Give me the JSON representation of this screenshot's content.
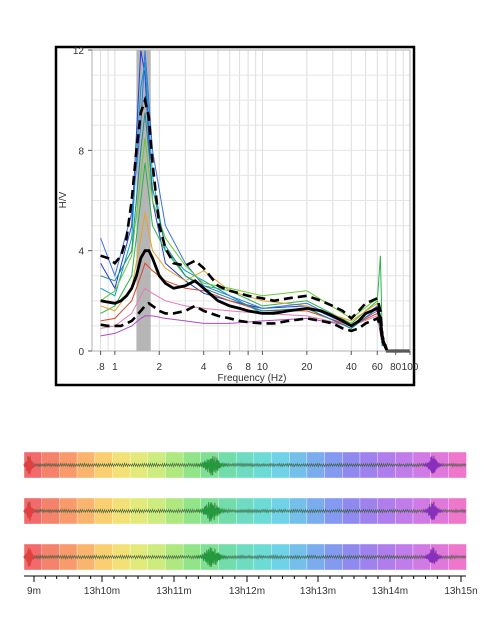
{
  "chart_data": [
    {
      "type": "line",
      "xlabel": "Frequency (Hz)",
      "ylabel": "H/V",
      "x_scale": "log",
      "xlim": [
        0.7,
        100
      ],
      "ylim": [
        0,
        12
      ],
      "x_ticks": [
        0.8,
        1,
        2,
        4,
        6,
        8,
        10,
        20,
        40,
        60,
        80,
        100
      ],
      "x_tick_labels": [
        ".8",
        "1",
        "2",
        "4",
        "6",
        "8",
        "10",
        "20",
        "40",
        "60",
        "80",
        "100"
      ],
      "y_ticks": [
        0,
        4,
        8,
        12
      ],
      "grid": true,
      "highlight_band": {
        "x": [
          1.4,
          1.75
        ],
        "color": "#a9a9a9"
      },
      "mean_curve": {
        "color": "#000000",
        "x": [
          0.8,
          0.9,
          1.0,
          1.1,
          1.2,
          1.3,
          1.4,
          1.5,
          1.6,
          1.7,
          1.8,
          2.0,
          2.2,
          2.5,
          3.0,
          3.5,
          4.0,
          5.0,
          6.0,
          7.0,
          8.0,
          10,
          12,
          15,
          20,
          25,
          30,
          35,
          40,
          45,
          50,
          55,
          60,
          63,
          65,
          70,
          80,
          100
        ],
        "y": [
          2.0,
          1.95,
          1.9,
          2.0,
          2.2,
          2.5,
          3.0,
          3.7,
          4.0,
          4.0,
          3.7,
          3.0,
          2.7,
          2.5,
          2.6,
          2.8,
          2.5,
          2.0,
          1.8,
          1.7,
          1.6,
          1.5,
          1.5,
          1.6,
          1.7,
          1.6,
          1.4,
          1.2,
          1.0,
          1.2,
          1.5,
          1.6,
          1.7,
          1.3,
          0.5,
          0,
          0,
          0
        ]
      },
      "std_upper": {
        "color": "#000000",
        "dashed": true,
        "x": [
          0.8,
          0.9,
          1.0,
          1.1,
          1.2,
          1.3,
          1.4,
          1.5,
          1.6,
          1.7,
          1.8,
          2.0,
          2.2,
          2.5,
          3.0,
          3.5,
          4.0,
          5.0,
          6.0,
          7.0,
          8.0,
          10,
          12,
          15,
          20,
          25,
          30,
          35,
          40,
          45,
          50,
          55,
          60,
          63,
          65,
          70,
          80,
          100
        ],
        "y": [
          3.8,
          3.7,
          3.5,
          3.8,
          4.5,
          6.0,
          8.0,
          9.5,
          10.0,
          9.3,
          7.5,
          5.0,
          4.1,
          3.5,
          3.4,
          3.6,
          3.3,
          2.6,
          2.4,
          2.3,
          2.2,
          2.1,
          2.0,
          2.1,
          2.2,
          2.0,
          1.8,
          1.6,
          1.3,
          1.6,
          1.9,
          2.0,
          2.1,
          1.6,
          0.6,
          0,
          0,
          0
        ]
      },
      "std_lower": {
        "color": "#000000",
        "dashed": true,
        "x": [
          0.8,
          0.9,
          1.0,
          1.1,
          1.2,
          1.3,
          1.4,
          1.5,
          1.6,
          1.7,
          1.8,
          2.0,
          2.2,
          2.5,
          3.0,
          3.5,
          4.0,
          5.0,
          6.0,
          7.0,
          8.0,
          10,
          12,
          15,
          20,
          25,
          30,
          35,
          40,
          45,
          50,
          55,
          60,
          63,
          65,
          70,
          80,
          100
        ],
        "y": [
          1.05,
          1.0,
          1.0,
          1.0,
          1.1,
          1.2,
          1.4,
          1.6,
          1.8,
          1.9,
          1.8,
          1.6,
          1.5,
          1.5,
          1.6,
          1.8,
          1.6,
          1.4,
          1.3,
          1.2,
          1.15,
          1.1,
          1.1,
          1.2,
          1.3,
          1.2,
          1.1,
          0.9,
          0.8,
          0.9,
          1.1,
          1.2,
          1.3,
          1.0,
          0.4,
          0,
          0,
          0
        ]
      },
      "window_curves": [
        {
          "color": "#1f3fd1",
          "x": [
            0.8,
            1.0,
            1.3,
            1.5,
            1.6,
            1.8,
            2.2,
            3,
            4,
            6,
            10,
            20,
            40,
            60,
            65
          ],
          "y": [
            3.5,
            2.5,
            5.0,
            12.0,
            11.0,
            6.0,
            3.5,
            2.8,
            2.3,
            2.0,
            1.7,
            1.8,
            1.0,
            1.8,
            0.2
          ]
        },
        {
          "color": "#00a0c8",
          "x": [
            0.8,
            1.0,
            1.3,
            1.5,
            1.6,
            1.8,
            2.2,
            3,
            4,
            6,
            10,
            20,
            40,
            60,
            65
          ],
          "y": [
            2.5,
            2.2,
            4.5,
            10.5,
            11.5,
            7.0,
            4.0,
            3.2,
            2.8,
            2.2,
            1.5,
            1.7,
            0.9,
            1.7,
            0.2
          ]
        },
        {
          "color": "#2bb34a",
          "x": [
            0.8,
            1.0,
            1.3,
            1.5,
            1.6,
            1.8,
            2.2,
            3,
            4,
            6,
            10,
            20,
            40,
            60,
            63,
            65
          ],
          "y": [
            1.5,
            1.8,
            3.0,
            6.0,
            7.5,
            5.0,
            4.0,
            3.0,
            2.6,
            2.4,
            1.8,
            2.0,
            1.1,
            2.0,
            3.8,
            0.2
          ]
        },
        {
          "color": "#e2a62a",
          "x": [
            0.8,
            1.0,
            1.3,
            1.5,
            1.6,
            1.8,
            2.2,
            3,
            4,
            6,
            10,
            20,
            40,
            60,
            65
          ],
          "y": [
            1.8,
            1.6,
            2.5,
            4.5,
            5.5,
            4.0,
            3.3,
            2.8,
            3.2,
            2.4,
            2.0,
            1.8,
            1.2,
            1.9,
            0.2
          ]
        },
        {
          "color": "#d8462a",
          "x": [
            0.8,
            1.0,
            1.3,
            1.5,
            1.6,
            1.8,
            2.2,
            3,
            4,
            6,
            10,
            20,
            40,
            60,
            65
          ],
          "y": [
            1.2,
            1.3,
            2.0,
            3.0,
            3.5,
            3.2,
            2.8,
            2.5,
            2.4,
            2.0,
            1.6,
            1.6,
            1.0,
            1.5,
            0.2
          ]
        },
        {
          "color": "#b04ac8",
          "x": [
            0.8,
            1.0,
            1.3,
            1.5,
            1.6,
            1.8,
            2.2,
            3,
            4,
            6,
            10,
            20,
            40,
            60,
            65
          ],
          "y": [
            0.6,
            0.7,
            1.0,
            1.3,
            1.4,
            1.4,
            1.3,
            1.2,
            1.1,
            1.1,
            1.2,
            1.3,
            1.0,
            1.6,
            0.2
          ]
        },
        {
          "color": "#3a72e0",
          "x": [
            0.8,
            1.0,
            1.3,
            1.5,
            1.6,
            1.8,
            2.2,
            3,
            4,
            6,
            10,
            20,
            40,
            60,
            65
          ],
          "y": [
            4.5,
            3.0,
            5.5,
            9.0,
            12.0,
            8.0,
            5.0,
            3.5,
            2.6,
            2.2,
            1.7,
            1.9,
            1.0,
            1.8,
            0.2
          ]
        },
        {
          "color": "#6ac830",
          "x": [
            0.8,
            1.0,
            1.3,
            1.5,
            1.6,
            1.8,
            2.2,
            3,
            4,
            6,
            10,
            20,
            40,
            60,
            65
          ],
          "y": [
            2.0,
            2.4,
            3.8,
            7.0,
            8.5,
            6.0,
            4.5,
            3.4,
            2.7,
            2.5,
            2.2,
            2.4,
            1.3,
            2.1,
            0.2
          ]
        },
        {
          "color": "#e87ab0",
          "x": [
            0.8,
            1.0,
            1.3,
            1.5,
            1.6,
            1.8,
            2.2,
            3,
            4,
            6,
            10,
            20,
            40,
            60,
            65
          ],
          "y": [
            0.9,
            1.0,
            1.5,
            2.2,
            2.5,
            2.3,
            2.0,
            1.8,
            1.7,
            1.6,
            1.5,
            1.4,
            1.0,
            1.4,
            0.2
          ]
        },
        {
          "color": "#1a8a8a",
          "x": [
            0.8,
            1.0,
            1.3,
            1.5,
            1.6,
            1.8,
            2.2,
            3,
            4,
            6,
            10,
            20,
            40,
            60,
            65
          ],
          "y": [
            3.0,
            2.8,
            4.0,
            8.0,
            9.5,
            6.5,
            4.2,
            3.0,
            2.5,
            2.1,
            1.6,
            1.7,
            0.9,
            1.7,
            0.2
          ]
        }
      ]
    },
    {
      "type": "line",
      "x_tick_labels": [
        "9m",
        "13h10m",
        "13h11m",
        "13h12m",
        "13h13m",
        "13h14m",
        "13h15n"
      ],
      "n_traces": 3,
      "n_windows": 25,
      "window_colors": [
        "#f26a6a",
        "#f5826a",
        "#f89a6c",
        "#f9b56e",
        "#f9cf72",
        "#f3e178",
        "#e2ea7c",
        "#cdeb7e",
        "#b0e880",
        "#92e488",
        "#7edf95",
        "#72dcaa",
        "#6edcc0",
        "#6cdbd6",
        "#70d2e6",
        "#74c0ea",
        "#7aacee",
        "#8499f0",
        "#908af0",
        "#9f82ee",
        "#b07eec",
        "#c07cea",
        "#d17ae6",
        "#e078dc",
        "#ee76cc"
      ],
      "bursts": [
        {
          "t": 0.012,
          "amp": 1.0,
          "width": 0.006,
          "color": "#e04040"
        },
        {
          "t": 0.425,
          "amp": 1.0,
          "width": 0.016,
          "color": "#239a3c"
        },
        {
          "t": 0.925,
          "amp": 0.9,
          "width": 0.01,
          "color": "#8a2ec0"
        }
      ]
    }
  ]
}
